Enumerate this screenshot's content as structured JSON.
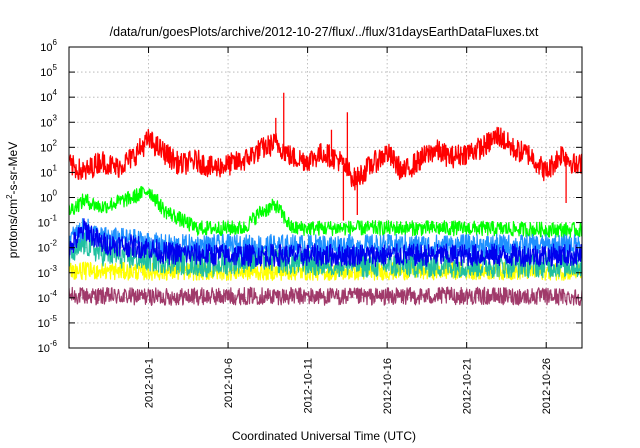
{
  "chart_data": {
    "type": "line",
    "title": "/data/run/goesPlots/archive/2012-10-27/flux/../flux/31daysEarthDataFluxes.txt",
    "xlabel": "Coordinated Universal Time (UTC)",
    "ylabel_main": "protons/cm",
    "ylabel_sup": "2",
    "ylabel_rest": "-s-sr-MeV",
    "yscale": "log",
    "xlim": [
      "2012-09-26",
      "2012-10-28T06:00"
    ],
    "ylim": [
      1e-06,
      1000000.0
    ],
    "x_ticks": [
      "2012-10-1",
      "2012-10-6",
      "2012-10-11",
      "2012-10-16",
      "2012-10-21",
      "2012-10-26"
    ],
    "y_ticks": [
      {
        "base": "10",
        "exp": "-6"
      },
      {
        "base": "10",
        "exp": "-5"
      },
      {
        "base": "10",
        "exp": "-4"
      },
      {
        "base": "10",
        "exp": "-3"
      },
      {
        "base": "10",
        "exp": "-2"
      },
      {
        "base": "10",
        "exp": "-1"
      },
      {
        "base": "10",
        "exp": "0"
      },
      {
        "base": "10",
        "exp": "1"
      },
      {
        "base": "10",
        "exp": "2"
      },
      {
        "base": "10",
        "exp": "3"
      },
      {
        "base": "10",
        "exp": "4"
      },
      {
        "base": "10",
        "exp": "5"
      },
      {
        "base": "10",
        "exp": "6"
      }
    ],
    "grid": true,
    "series": [
      {
        "color": "#a03a6a",
        "x": [
          "2012-09-26",
          "2012-10-02",
          "2012-10-08",
          "2012-10-14",
          "2012-10-20",
          "2012-10-28T06:00"
        ],
        "values": [
          0.00012,
          0.00011,
          0.00012,
          0.00011,
          0.00012,
          0.00011
        ],
        "spread_decades": 0.35
      },
      {
        "color": "#ffff00",
        "x": [
          "2012-09-26",
          "2012-10-02",
          "2012-10-08",
          "2012-10-14",
          "2012-10-20",
          "2012-10-28T06:00"
        ],
        "values": [
          0.0012,
          0.0011,
          0.0011,
          0.0011,
          0.0012,
          0.0011
        ],
        "spread_decades": 0.35
      },
      {
        "color": "#20c0a0",
        "x": [
          "2012-09-26",
          "2012-09-27",
          "2012-09-28",
          "2012-09-30",
          "2012-10-02",
          "2012-10-05",
          "2012-10-08",
          "2012-10-10",
          "2012-10-15",
          "2012-10-20",
          "2012-10-28T06:00"
        ],
        "values": [
          0.004,
          0.015,
          0.006,
          0.004,
          0.003,
          0.002,
          0.004,
          0.0025,
          0.002,
          0.002,
          0.002
        ],
        "spread_decades": 0.5
      },
      {
        "color": "#00ff00",
        "x": [
          "2012-09-26",
          "2012-09-27",
          "2012-09-28",
          "2012-09-30",
          "2012-10-01",
          "2012-10-02",
          "2012-10-04",
          "2012-10-07",
          "2012-10-08",
          "2012-10-09",
          "2012-10-10",
          "2012-10-13",
          "2012-10-20",
          "2012-10-28T06:00"
        ],
        "values": [
          0.3,
          0.8,
          0.4,
          1.0,
          2.0,
          0.3,
          0.06,
          0.06,
          0.25,
          0.5,
          0.06,
          0.06,
          0.06,
          0.05
        ],
        "spread_decades": 0.3
      },
      {
        "color": "#1e90ff",
        "x": [
          "2012-09-26",
          "2012-09-27",
          "2012-09-28",
          "2012-09-30",
          "2012-10-02",
          "2012-10-06",
          "2012-10-10",
          "2012-10-14",
          "2012-10-20",
          "2012-10-28T06:00"
        ],
        "values": [
          0.02,
          0.06,
          0.025,
          0.02,
          0.012,
          0.012,
          0.012,
          0.012,
          0.012,
          0.012
        ],
        "spread_decades": 0.45
      },
      {
        "color": "#0000ee",
        "x": [
          "2012-09-26",
          "2012-09-27",
          "2012-09-28",
          "2012-10-01",
          "2012-10-02",
          "2012-10-06",
          "2012-10-10",
          "2012-10-14",
          "2012-10-20",
          "2012-10-28T06:00"
        ],
        "values": [
          0.008,
          0.06,
          0.015,
          0.01,
          0.006,
          0.005,
          0.005,
          0.005,
          0.005,
          0.005
        ],
        "spread_decades": 0.45
      },
      {
        "color": "#ff0000",
        "x": [
          "2012-09-26",
          "2012-09-27",
          "2012-09-28",
          "2012-09-29",
          "2012-09-30",
          "2012-10-01",
          "2012-10-02",
          "2012-10-03",
          "2012-10-04",
          "2012-10-05",
          "2012-10-06",
          "2012-10-07",
          "2012-10-08",
          "2012-10-09",
          "2012-10-10",
          "2012-10-11",
          "2012-10-12",
          "2012-10-13",
          "2012-10-14",
          "2012-10-15",
          "2012-10-16",
          "2012-10-17",
          "2012-10-18",
          "2012-10-19",
          "2012-10-20",
          "2012-10-21",
          "2012-10-22",
          "2012-10-23",
          "2012-10-24",
          "2012-10-25",
          "2012-10-26",
          "2012-10-27",
          "2012-10-28",
          "2012-10-28T06:00"
        ],
        "values": [
          20,
          10,
          30,
          15,
          40,
          200,
          60,
          20,
          30,
          15,
          20,
          30,
          80,
          150,
          40,
          30,
          60,
          30,
          5,
          20,
          60,
          10,
          30,
          80,
          40,
          60,
          100,
          300,
          80,
          50,
          10,
          60,
          15,
          30
        ],
        "spread_decades": 0.45,
        "spikes": [
          {
            "x": "2012-10-09T12:00",
            "value": 15000
          },
          {
            "x": "2012-10-09T00:00",
            "value": 1500
          },
          {
            "x": "2012-10-13T12:00",
            "value": 2500
          },
          {
            "x": "2012-10-13T06:00",
            "value": 0.12
          },
          {
            "x": "2012-10-14T03:00",
            "value": 0.2
          },
          {
            "x": "2012-10-12T12:00",
            "value": 500
          },
          {
            "x": "2012-10-27T06:00",
            "value": 0.6
          }
        ]
      }
    ]
  }
}
